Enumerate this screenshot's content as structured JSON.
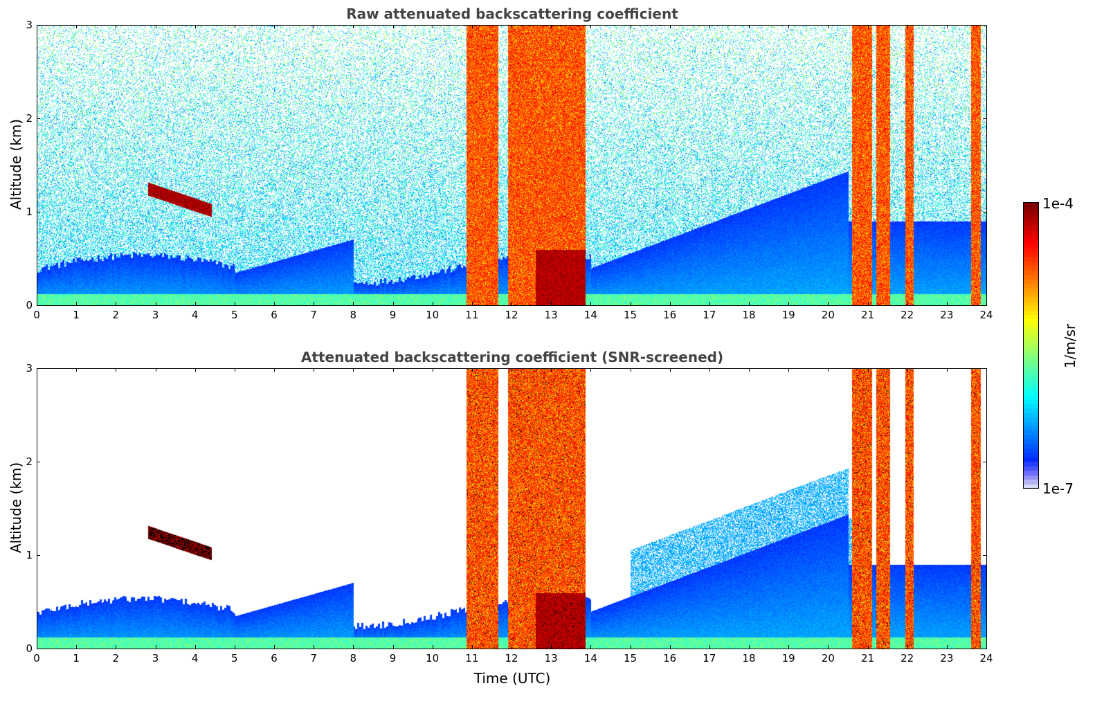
{
  "chart_data": [
    {
      "type": "heatmap",
      "title": "Raw attenuated backscattering coefficient",
      "xlabel": "",
      "ylabel": "Altitude (km)",
      "xlim": [
        0,
        24
      ],
      "ylim": [
        0,
        3
      ],
      "x_ticks": [
        "0",
        "1",
        "2",
        "3",
        "4",
        "5",
        "6",
        "7",
        "8",
        "9",
        "10",
        "11",
        "12",
        "13",
        "14",
        "15",
        "16",
        "17",
        "18",
        "19",
        "20",
        "21",
        "22",
        "23",
        "24"
      ],
      "y_ticks": [
        "0",
        "1",
        "2",
        "3"
      ],
      "screened": false
    },
    {
      "type": "heatmap",
      "title": "Attenuated backscattering coefficient (SNR-screened)",
      "xlabel": "Time (UTC)",
      "ylabel": "Altitude (km)",
      "xlim": [
        0,
        24
      ],
      "ylim": [
        0,
        3
      ],
      "x_ticks": [
        "0",
        "1",
        "2",
        "3",
        "4",
        "5",
        "6",
        "7",
        "8",
        "9",
        "10",
        "11",
        "12",
        "13",
        "14",
        "15",
        "16",
        "17",
        "18",
        "19",
        "20",
        "21",
        "22",
        "23",
        "24"
      ],
      "y_ticks": [
        "0",
        "1",
        "2",
        "3"
      ],
      "screened": true
    }
  ],
  "colorbar": {
    "label": "1/m/sr",
    "max_label": "1e-4",
    "min_label": "1e-7",
    "scale": "log",
    "colormap": "jet"
  },
  "features": {
    "cloud_bands_hours": [
      [
        10.85,
        11.65
      ],
      [
        11.9,
        12.7
      ],
      [
        12.6,
        13.85
      ],
      [
        20.6,
        21.1
      ],
      [
        21.2,
        21.55
      ],
      [
        21.95,
        22.15
      ],
      [
        23.6,
        23.85
      ]
    ],
    "elevated_layer": {
      "x_start": 2.8,
      "x_end": 4.4,
      "alt_start_km": 1.25,
      "alt_end_km": 1.02
    }
  }
}
